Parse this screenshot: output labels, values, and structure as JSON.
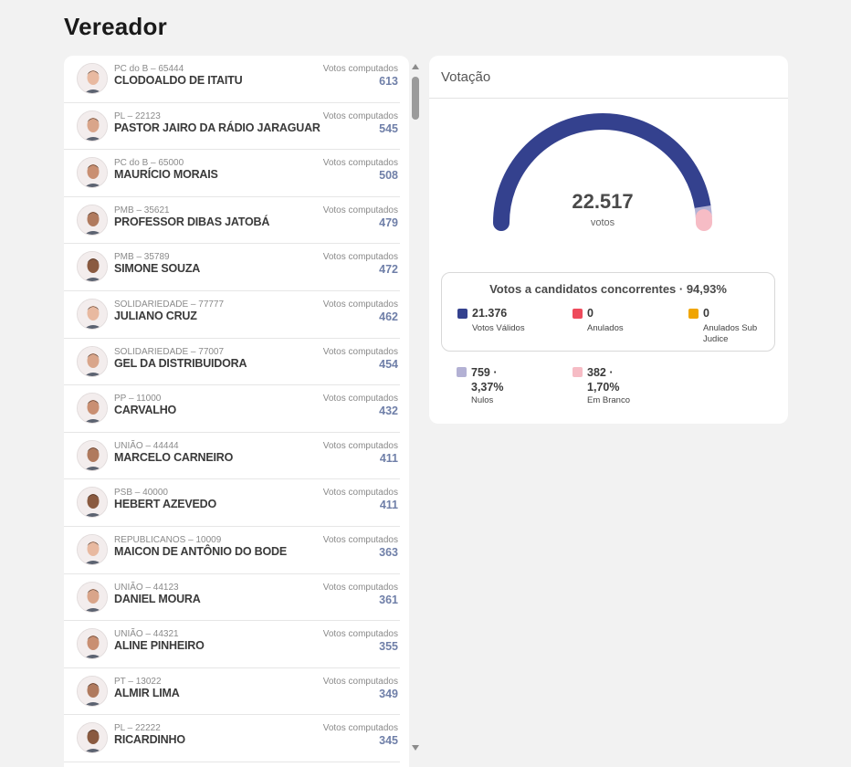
{
  "page": {
    "title": "Vereador"
  },
  "candidates": [
    {
      "party": "PC do B – 65444",
      "name": "CLODOALDO DE ITAITU",
      "votes_label": "Votos computados",
      "votes": "613",
      "avatar": "clodoaldo-avatar"
    },
    {
      "party": "PL – 22123",
      "name": "PASTOR JAIRO DA RÁDIO JARAGUAR",
      "votes_label": "Votos computados",
      "votes": "545",
      "avatar": "pastor-jairo-avatar"
    },
    {
      "party": "PC do B – 65000",
      "name": "MAURÍCIO MORAIS",
      "votes_label": "Votos computados",
      "votes": "508",
      "avatar": "mauricio-avatar"
    },
    {
      "party": "PMB – 35621",
      "name": "PROFESSOR DIBAS JATOBÁ",
      "votes_label": "Votos computados",
      "votes": "479",
      "avatar": "dibas-avatar"
    },
    {
      "party": "PMB – 35789",
      "name": "SIMONE SOUZA",
      "votes_label": "Votos computados",
      "votes": "472",
      "avatar": "simone-avatar"
    },
    {
      "party": "SOLIDARIEDADE – 77777",
      "name": "JULIANO CRUZ",
      "votes_label": "Votos computados",
      "votes": "462",
      "avatar": "juliano-avatar"
    },
    {
      "party": "SOLIDARIEDADE – 77007",
      "name": "GEL DA DISTRIBUIDORA",
      "votes_label": "Votos computados",
      "votes": "454",
      "avatar": "gel-avatar"
    },
    {
      "party": "PP – 11000",
      "name": "CARVALHO",
      "votes_label": "Votos computados",
      "votes": "432",
      "avatar": "carvalho-avatar"
    },
    {
      "party": "UNIÃO – 44444",
      "name": "MARCELO CARNEIRO",
      "votes_label": "Votos computados",
      "votes": "411",
      "avatar": "marcelo-avatar"
    },
    {
      "party": "PSB – 40000",
      "name": "HEBERT AZEVEDO",
      "votes_label": "Votos computados",
      "votes": "411",
      "avatar": "hebert-avatar"
    },
    {
      "party": "REPUBLICANOS – 10009",
      "name": "MAICON DE ANTÔNIO DO BODE",
      "votes_label": "Votos computados",
      "votes": "363",
      "avatar": "maicon-avatar"
    },
    {
      "party": "UNIÃO – 44123",
      "name": "DANIEL MOURA",
      "votes_label": "Votos computados",
      "votes": "361",
      "avatar": "daniel-avatar"
    },
    {
      "party": "UNIÃO – 44321",
      "name": "ALINE PINHEIRO",
      "votes_label": "Votos computados",
      "votes": "355",
      "avatar": "aline-avatar"
    },
    {
      "party": "PT – 13022",
      "name": "ALMIR LIMA",
      "votes_label": "Votos computados",
      "votes": "349",
      "avatar": "almir-avatar"
    },
    {
      "party": "PL – 22222",
      "name": "RICARDINHO",
      "votes_label": "Votos computados",
      "votes": "345",
      "avatar": "ricardinho-avatar"
    }
  ],
  "votacao": {
    "title": "Votação",
    "total": "22.517",
    "total_caption": "votos",
    "gauge_fractions": {
      "validos": 0.9493,
      "nulos": 0.0337,
      "brancos": 0.017
    },
    "summary_title": "Votos a candidatos concorrentes · 94,93%",
    "stats": {
      "validos": {
        "value": "21.376",
        "label": "Votos Válidos",
        "color": "#34418e"
      },
      "anulados": {
        "value": "0",
        "label": "Anulados",
        "color": "#ee4b5c"
      },
      "anulados_sub_judice": {
        "value": "0",
        "label_line1": "Anulados Sub",
        "label_line2": "Judice",
        "color": "#f0a500"
      },
      "nulos": {
        "value_line1": "759 ·",
        "value_line2": "3,37%",
        "label": "Nulos",
        "color": "#b3b1d4"
      },
      "brancos": {
        "value_line1": "382 ·",
        "value_line2": "1,70%",
        "label": "Em Branco",
        "color": "#f6bcc5"
      }
    }
  }
}
